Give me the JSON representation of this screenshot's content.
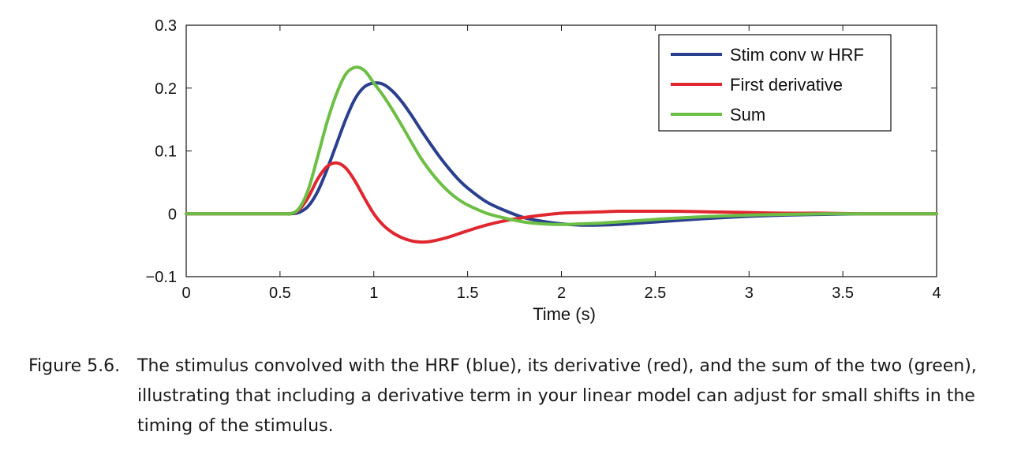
{
  "chart_data": {
    "type": "line",
    "xlabel": "Time (s)",
    "ylabel": "",
    "xlim": [
      0,
      4
    ],
    "ylim": [
      -0.1,
      0.3
    ],
    "xticks": [
      0,
      0.5,
      1,
      1.5,
      2,
      2.5,
      3,
      3.5,
      4
    ],
    "xtick_labels": [
      "0",
      "0.5",
      "1",
      "1.5",
      "2",
      "2.5",
      "3",
      "3.5",
      "4"
    ],
    "yticks": [
      -0.1,
      0,
      0.1,
      0.2,
      0.3
    ],
    "ytick_labels": [
      "−0.1",
      "0",
      "0.1",
      "0.2",
      "0.3"
    ],
    "grid": false,
    "legend_position": "top-right",
    "x": [
      0,
      0.5,
      0.55,
      0.6,
      0.65,
      0.7,
      0.75,
      0.8,
      0.85,
      0.9,
      0.95,
      1.0,
      1.05,
      1.1,
      1.15,
      1.2,
      1.25,
      1.3,
      1.35,
      1.4,
      1.45,
      1.5,
      1.6,
      1.7,
      1.8,
      1.9,
      2.0,
      2.1,
      2.2,
      2.3,
      2.4,
      2.5,
      2.6,
      2.8,
      3.0,
      3.2,
      3.4,
      3.6,
      3.8,
      4.0
    ],
    "series": [
      {
        "name": "Stim conv w HRF",
        "color": "#2b3f8f",
        "values": [
          0,
          0,
          0,
          0.002,
          0.012,
          0.035,
          0.07,
          0.11,
          0.15,
          0.183,
          0.202,
          0.208,
          0.206,
          0.195,
          0.178,
          0.157,
          0.134,
          0.112,
          0.091,
          0.072,
          0.055,
          0.041,
          0.019,
          0.005,
          -0.006,
          -0.012,
          -0.016,
          -0.018,
          -0.018,
          -0.017,
          -0.015,
          -0.013,
          -0.011,
          -0.007,
          -0.004,
          -0.002,
          -0.001,
          0,
          0,
          0
        ]
      },
      {
        "name": "First derivative",
        "color": "#e0262e",
        "values": [
          0,
          0,
          0,
          0.006,
          0.026,
          0.055,
          0.075,
          0.081,
          0.073,
          0.052,
          0.025,
          0,
          -0.018,
          -0.03,
          -0.038,
          -0.043,
          -0.045,
          -0.044,
          -0.041,
          -0.037,
          -0.032,
          -0.027,
          -0.018,
          -0.011,
          -0.006,
          -0.002,
          0.001,
          0.002,
          0.003,
          0.004,
          0.004,
          0.004,
          0.004,
          0.003,
          0.002,
          0.001,
          0.001,
          0,
          0,
          0
        ]
      },
      {
        "name": "Sum",
        "color": "#6cbf45",
        "values": [
          0,
          0,
          0,
          0.008,
          0.038,
          0.09,
          0.145,
          0.19,
          0.222,
          0.233,
          0.228,
          0.208,
          0.188,
          0.165,
          0.14,
          0.114,
          0.089,
          0.068,
          0.05,
          0.035,
          0.023,
          0.014,
          0.001,
          -0.007,
          -0.013,
          -0.016,
          -0.017,
          -0.016,
          -0.015,
          -0.013,
          -0.011,
          -0.009,
          -0.007,
          -0.004,
          -0.002,
          -0.001,
          0,
          0,
          0,
          0
        ]
      }
    ]
  },
  "caption": {
    "label": "Figure 5.6.",
    "text": "The stimulus convolved with the HRF (blue), its derivative (red), and the sum of the two (green), illustrating that including a derivative term in your linear model can adjust for small shifts in the timing of the stimulus."
  }
}
